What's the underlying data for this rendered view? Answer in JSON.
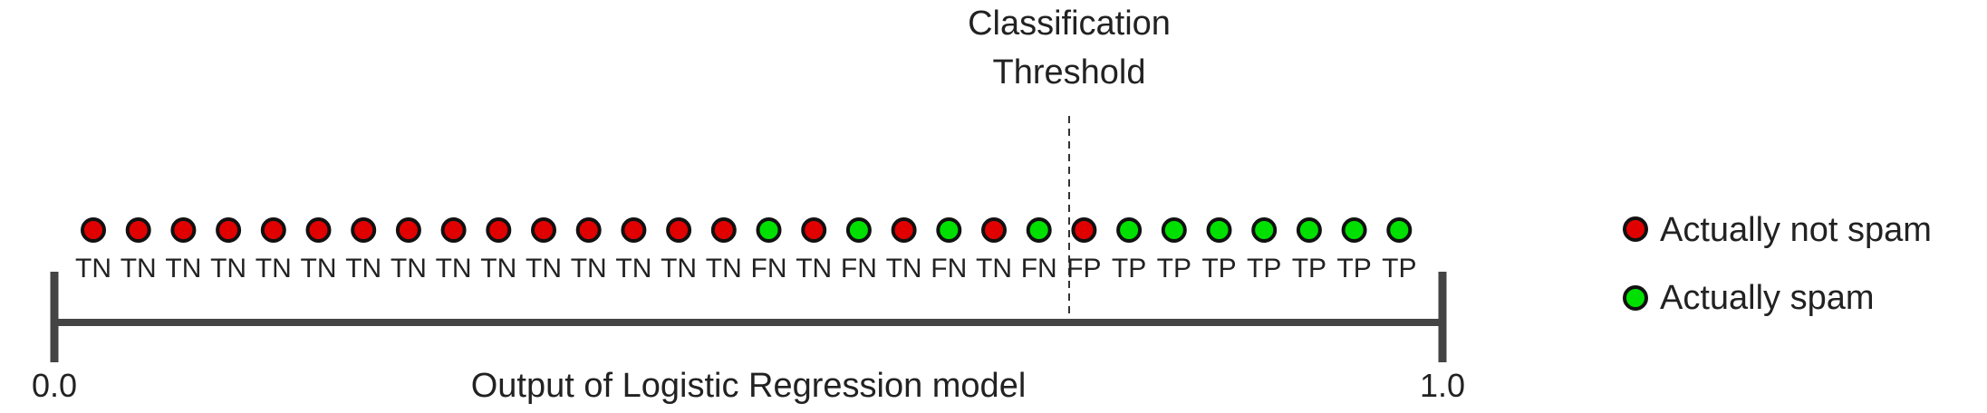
{
  "title_lines": [
    "Classification",
    "Threshold"
  ],
  "axis": {
    "min_label": "0.0",
    "max_label": "1.0",
    "caption": "Output of Logistic Regression model"
  },
  "colors": {
    "not_spam": "#e00000",
    "spam": "#00e000",
    "axis": "#444444",
    "dot_outline": "#111111"
  },
  "legend": [
    {
      "label": "Actually not spam",
      "class": "not_spam"
    },
    {
      "label": "Actually spam",
      "class": "spam"
    }
  ],
  "samples": [
    {
      "class": "not_spam",
      "label": "TN"
    },
    {
      "class": "not_spam",
      "label": "TN"
    },
    {
      "class": "not_spam",
      "label": "TN"
    },
    {
      "class": "not_spam",
      "label": "TN"
    },
    {
      "class": "not_spam",
      "label": "TN"
    },
    {
      "class": "not_spam",
      "label": "TN"
    },
    {
      "class": "not_spam",
      "label": "TN"
    },
    {
      "class": "not_spam",
      "label": "TN"
    },
    {
      "class": "not_spam",
      "label": "TN"
    },
    {
      "class": "not_spam",
      "label": "TN"
    },
    {
      "class": "not_spam",
      "label": "TN"
    },
    {
      "class": "not_spam",
      "label": "TN"
    },
    {
      "class": "not_spam",
      "label": "TN"
    },
    {
      "class": "not_spam",
      "label": "TN"
    },
    {
      "class": "not_spam",
      "label": "TN"
    },
    {
      "class": "spam",
      "label": "FN"
    },
    {
      "class": "not_spam",
      "label": "TN"
    },
    {
      "class": "spam",
      "label": "FN"
    },
    {
      "class": "not_spam",
      "label": "TN"
    },
    {
      "class": "spam",
      "label": "FN"
    },
    {
      "class": "not_spam",
      "label": "TN"
    },
    {
      "class": "spam",
      "label": "FN"
    },
    {
      "class": "not_spam",
      "label": "FP"
    },
    {
      "class": "spam",
      "label": "TP"
    },
    {
      "class": "spam",
      "label": "TP"
    },
    {
      "class": "spam",
      "label": "TP"
    },
    {
      "class": "spam",
      "label": "TP"
    },
    {
      "class": "spam",
      "label": "TP"
    },
    {
      "class": "spam",
      "label": "TP"
    },
    {
      "class": "spam",
      "label": "TP"
    }
  ]
}
